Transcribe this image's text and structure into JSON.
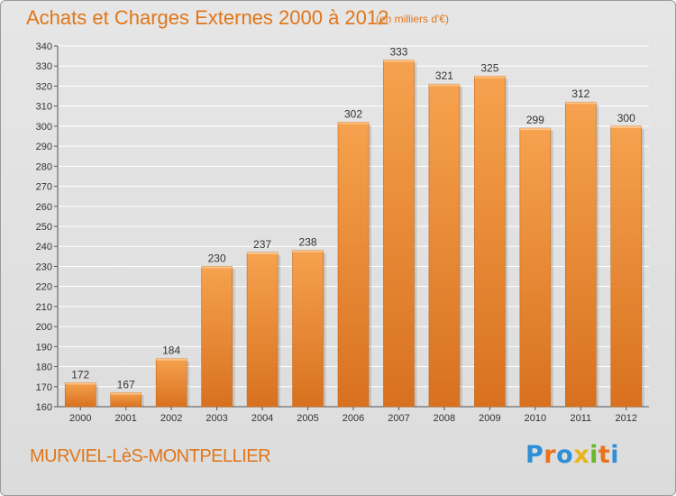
{
  "header": {
    "title": "Achats et Charges Externes 2000 à 2012",
    "subtitle": "(en milliers d'€)"
  },
  "footer": {
    "commune": "MURVIEL-LèS-MONTPELLIER",
    "logo_text": "Proxiti",
    "logo_colors": [
      "#2f8fd6",
      "#e8731c",
      "#2f8fd6",
      "#e8b51c",
      "#6bb82a",
      "#e8731c",
      "#2f8fd6"
    ]
  },
  "colors": {
    "bar_light": "#f6a24e",
    "bar_dark": "#d8711f",
    "accent": "#e0761a"
  },
  "chart_data": {
    "type": "bar",
    "title": "Achats et Charges Externes 2000 à 2012",
    "subtitle": "(en milliers d'€)",
    "categories": [
      "2000",
      "2001",
      "2002",
      "2003",
      "2004",
      "2005",
      "2006",
      "2007",
      "2008",
      "2009",
      "2010",
      "2011",
      "2012"
    ],
    "values": [
      172,
      167,
      184,
      230,
      237,
      238,
      302,
      333,
      321,
      325,
      299,
      312,
      300
    ],
    "ylim": [
      160,
      340
    ],
    "yticks": [
      160,
      170,
      180,
      190,
      200,
      210,
      220,
      230,
      240,
      250,
      260,
      270,
      280,
      290,
      300,
      310,
      320,
      330,
      340
    ],
    "grid": true,
    "show_value_labels": true
  }
}
